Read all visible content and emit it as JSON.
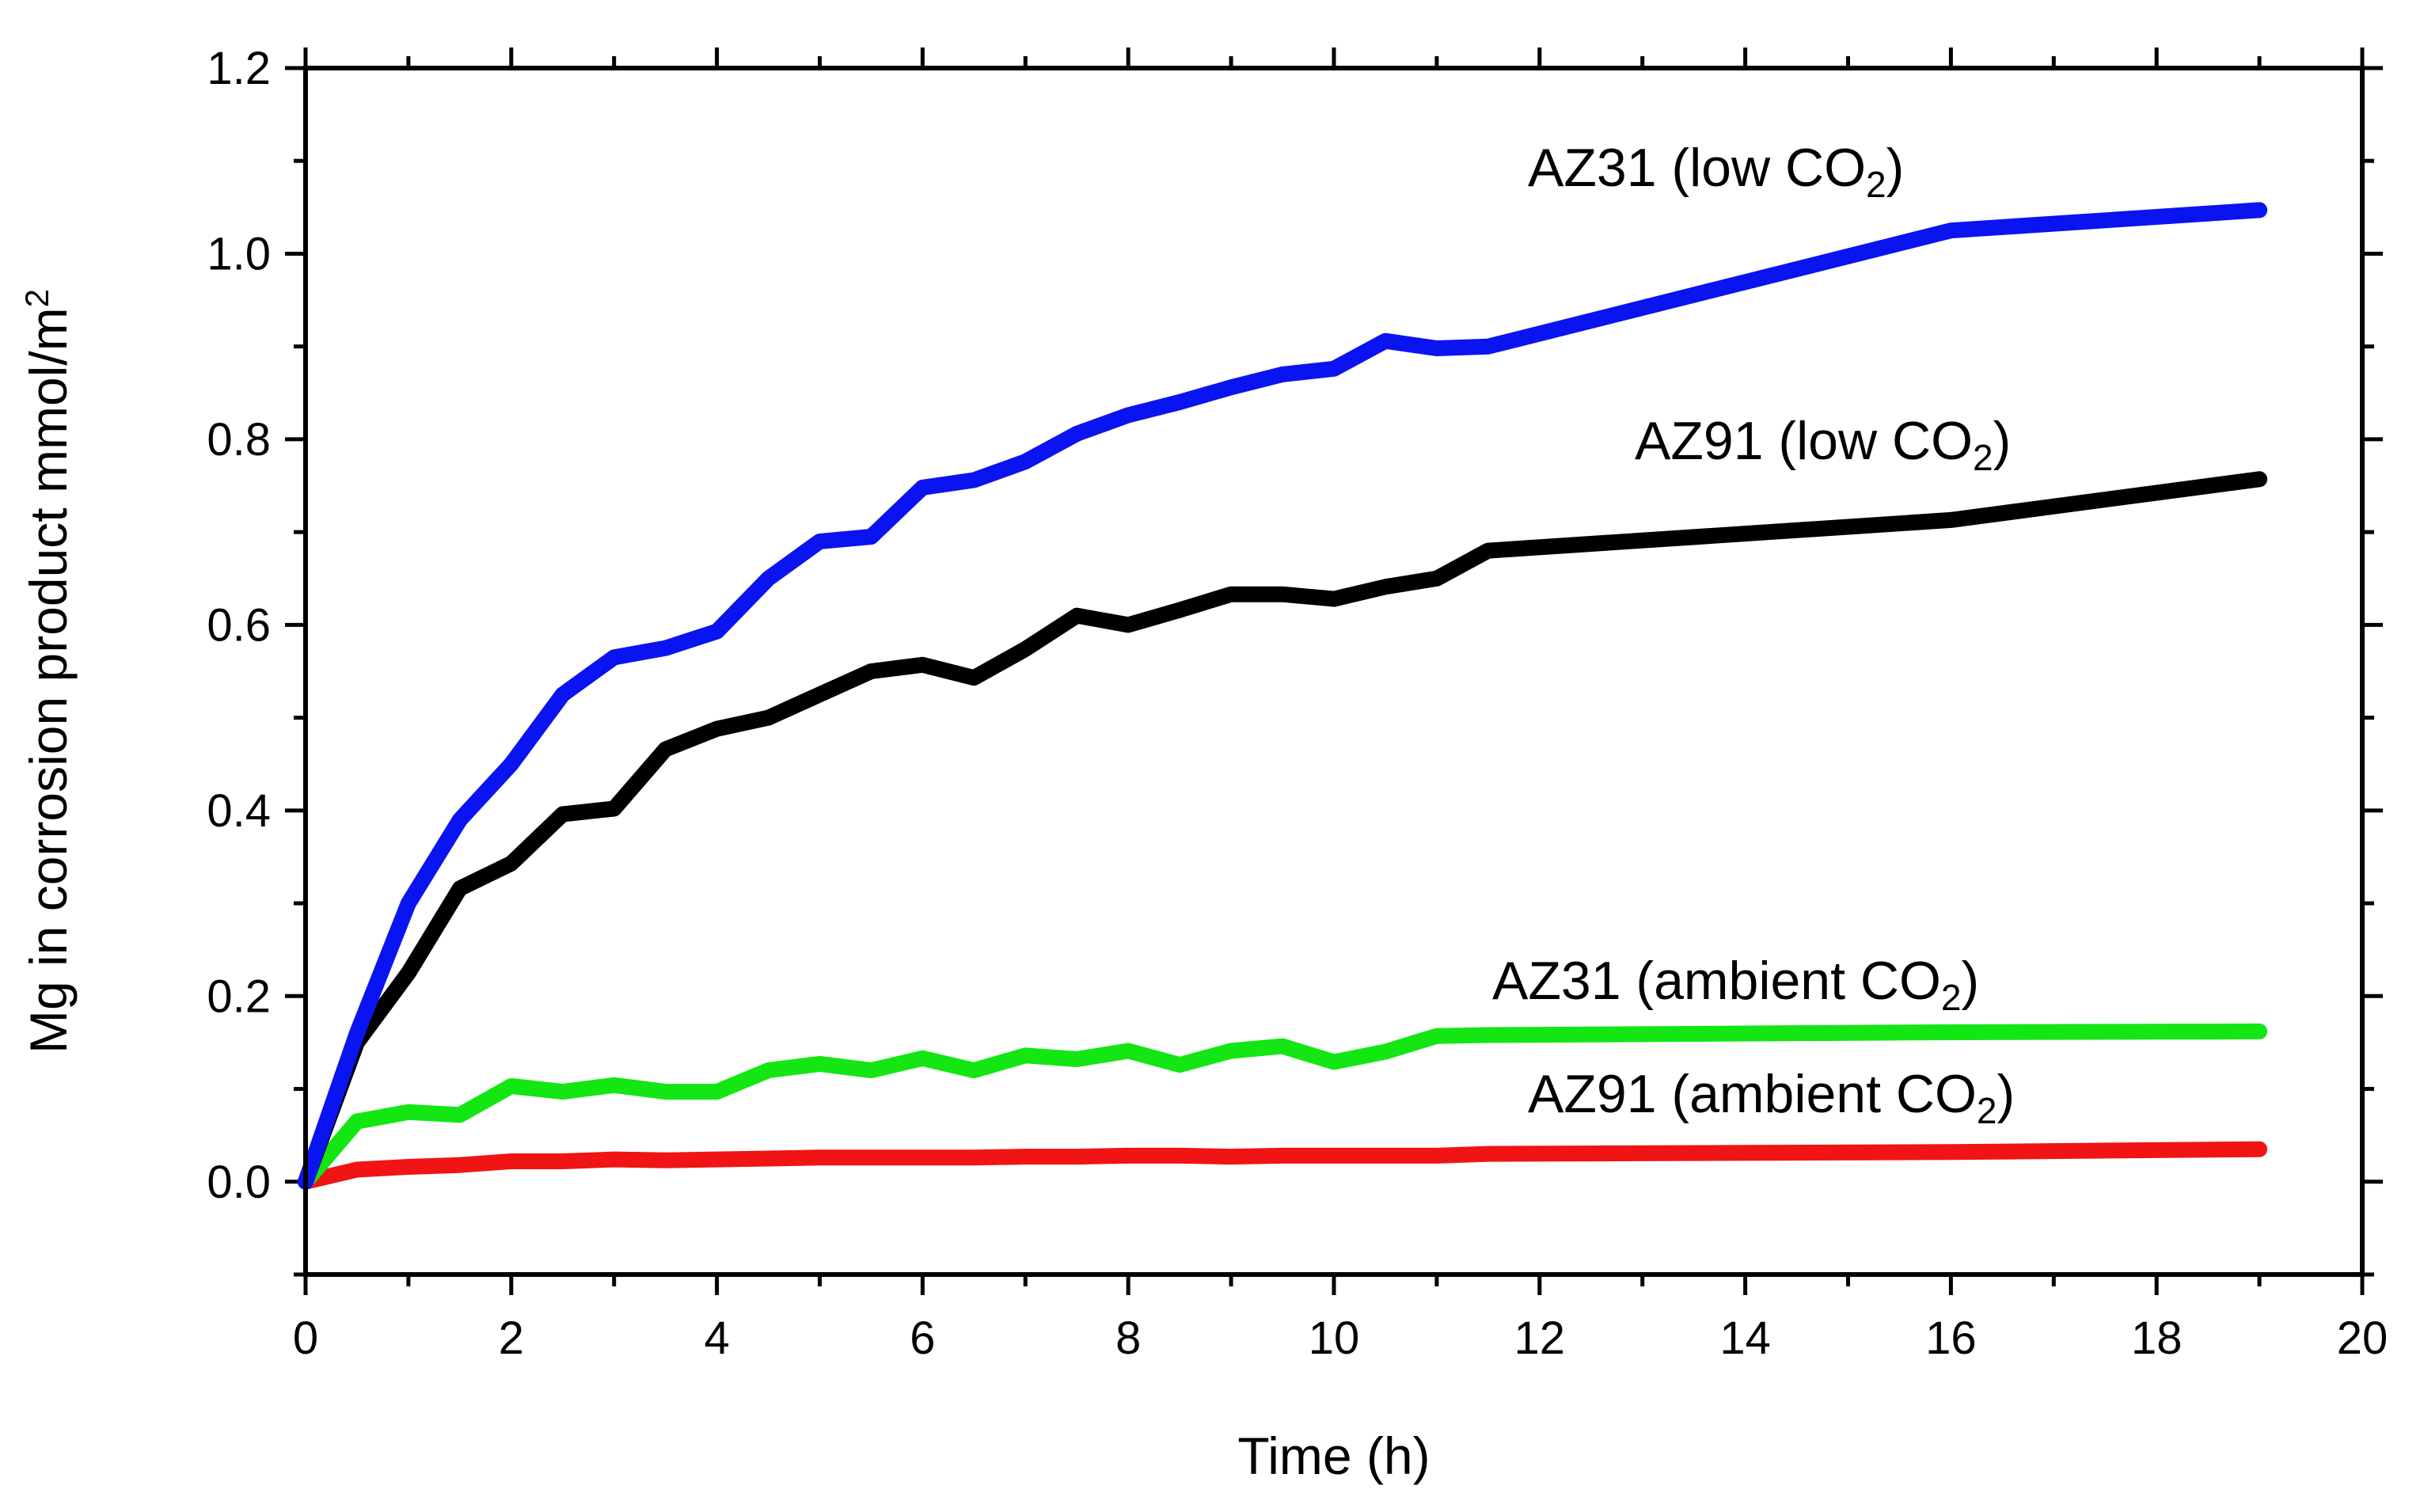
{
  "chart_data": {
    "type": "line",
    "title": "",
    "xlabel": "Time (h)",
    "ylabel_prefix": "Mg in corrosion product mmol/m",
    "ylabel_superscript": "2",
    "xlim": [
      0,
      20
    ],
    "ylim": [
      -0.1,
      1.2
    ],
    "xticks": [
      0,
      2,
      4,
      6,
      8,
      10,
      12,
      14,
      16,
      18,
      20
    ],
    "xtick_labels": [
      "0",
      "2",
      "4",
      "6",
      "8",
      "10",
      "12",
      "14",
      "16",
      "18",
      "20"
    ],
    "yticks": [
      0.0,
      0.2,
      0.4,
      0.6,
      0.8,
      1.0,
      1.2
    ],
    "ytick_labels": [
      "0.0",
      "0.2",
      "0.4",
      "0.6",
      "0.8",
      "1.0",
      "1.2"
    ],
    "grid": false,
    "series": [
      {
        "name": "AZ31 (low CO2)",
        "label_main": "AZ31 (low CO",
        "label_sub": "2",
        "label_close": ")",
        "color": "#0a14f0",
        "x": [
          0,
          0.5,
          1,
          1.5,
          2,
          2.5,
          3,
          3.5,
          4,
          4.5,
          5,
          5.5,
          6,
          6.5,
          7,
          7.5,
          8,
          8.5,
          9,
          9.5,
          10,
          10.5,
          11,
          11.5,
          16,
          19
        ],
        "y": [
          0,
          0.16,
          0.3,
          0.39,
          0.45,
          0.525,
          0.565,
          0.575,
          0.593,
          0.65,
          0.69,
          0.695,
          0.748,
          0.756,
          0.776,
          0.806,
          0.826,
          0.84,
          0.856,
          0.87,
          0.876,
          0.906,
          0.898,
          0.9,
          1.025,
          1.047
        ]
      },
      {
        "name": "AZ91 (low CO2)",
        "label_main": "AZ91 (low CO",
        "label_sub": "2",
        "label_close": ")",
        "color": "#000000",
        "x": [
          0,
          0.5,
          1,
          1.5,
          2,
          2.5,
          3,
          3.5,
          4,
          4.5,
          5,
          5.5,
          6,
          6.5,
          7,
          7.5,
          8,
          8.5,
          9,
          9.5,
          10,
          10.5,
          11,
          11.5,
          16,
          19
        ],
        "y": [
          0,
          0.15,
          0.225,
          0.316,
          0.343,
          0.396,
          0.402,
          0.466,
          0.488,
          0.5,
          0.525,
          0.55,
          0.557,
          0.543,
          0.574,
          0.61,
          0.6,
          0.616,
          0.633,
          0.633,
          0.628,
          0.641,
          0.65,
          0.68,
          0.713,
          0.757
        ]
      },
      {
        "name": "AZ31 (ambient CO2)",
        "label_main": "AZ31 (ambient CO",
        "label_sub": "2",
        "label_close": ")",
        "color": "#14e614",
        "x": [
          0,
          0.5,
          1,
          1.5,
          2,
          2.5,
          3,
          3.5,
          4,
          4.5,
          5,
          5.5,
          6,
          6.5,
          7,
          7.5,
          8,
          8.5,
          9,
          9.5,
          10,
          10.5,
          11,
          11.5,
          16,
          19
        ],
        "y": [
          0,
          0.065,
          0.075,
          0.072,
          0.103,
          0.097,
          0.104,
          0.097,
          0.097,
          0.12,
          0.127,
          0.12,
          0.133,
          0.12,
          0.136,
          0.132,
          0.141,
          0.126,
          0.141,
          0.146,
          0.129,
          0.14,
          0.157,
          0.158,
          0.161,
          0.162
        ]
      },
      {
        "name": "AZ91 (ambient CO2)",
        "label_main": "AZ91 (ambient CO",
        "label_sub": "2",
        "label_close": ")",
        "color": "#f01414",
        "x": [
          0,
          0.5,
          1,
          1.5,
          2,
          2.5,
          3,
          3.5,
          4,
          4.5,
          5,
          5.5,
          6,
          6.5,
          7,
          7.5,
          8,
          8.5,
          9,
          9.5,
          10,
          10.5,
          11,
          11.5,
          16,
          19
        ],
        "y": [
          0,
          0.013,
          0.016,
          0.018,
          0.022,
          0.022,
          0.024,
          0.023,
          0.024,
          0.025,
          0.026,
          0.026,
          0.026,
          0.026,
          0.027,
          0.027,
          0.028,
          0.028,
          0.027,
          0.028,
          0.028,
          0.028,
          0.028,
          0.03,
          0.032,
          0.035
        ]
      }
    ],
    "annotations": "series names shown as text labels near each curve"
  }
}
